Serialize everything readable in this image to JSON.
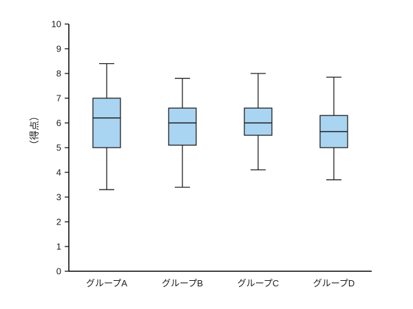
{
  "chart_data": {
    "type": "boxplot",
    "title": "",
    "ylabel": "（得点）",
    "xlabel": "",
    "ylim": [
      0,
      10
    ],
    "ytick_step": 1,
    "ytick_labels": [
      "0",
      "1",
      "2",
      "3",
      "4",
      "5",
      "6",
      "7",
      "8",
      "9",
      "10"
    ],
    "categories": [
      "グループA",
      "グループB",
      "グループC",
      "グループD"
    ],
    "boxes": [
      {
        "category": "グループA",
        "whisker_low": 3.3,
        "q1": 5.0,
        "median": 6.2,
        "q3": 7.0,
        "whisker_high": 8.4
      },
      {
        "category": "グループB",
        "whisker_low": 3.4,
        "q1": 5.1,
        "median": 6.0,
        "q3": 6.6,
        "whisker_high": 7.8
      },
      {
        "category": "グループC",
        "whisker_low": 4.1,
        "q1": 5.5,
        "median": 6.0,
        "q3": 6.6,
        "whisker_high": 8.0
      },
      {
        "category": "グループD",
        "whisker_low": 3.7,
        "q1": 5.0,
        "median": 5.65,
        "q3": 6.3,
        "whisker_high": 7.85
      }
    ],
    "grid": false,
    "legend": false,
    "colors": {
      "box_fill": "#A9D4F2",
      "box_stroke": "#1f1f1f",
      "median": "#1f1f1f",
      "whisker": "#1f1f1f",
      "axis": "#000000",
      "background": "#ffffff"
    }
  }
}
